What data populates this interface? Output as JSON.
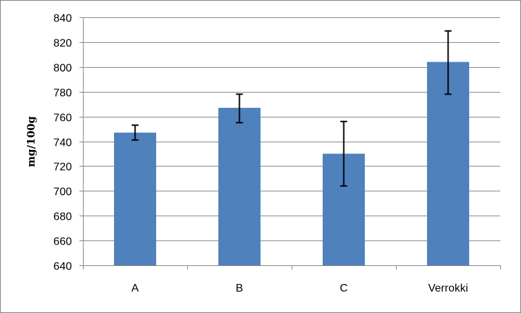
{
  "chart_data": {
    "type": "bar",
    "title": "",
    "xlabel": "",
    "ylabel": "mg/100g",
    "categories": [
      "A",
      "B",
      "C",
      "Verrokki"
    ],
    "values": [
      747,
      767,
      730,
      804
    ],
    "error_bars": [
      {
        "low": 741,
        "high": 753
      },
      {
        "low": 755,
        "high": 778
      },
      {
        "low": 704,
        "high": 756
      },
      {
        "low": 778,
        "high": 829
      }
    ],
    "ylim": [
      640,
      840
    ],
    "yticks": [
      640,
      660,
      680,
      700,
      720,
      740,
      760,
      780,
      800,
      820,
      840
    ],
    "grid": true,
    "legend": "none",
    "colors": {
      "bar": "#4f81bd",
      "grid": "#878787",
      "axis": "#878787",
      "error_bar": "#000000"
    }
  }
}
